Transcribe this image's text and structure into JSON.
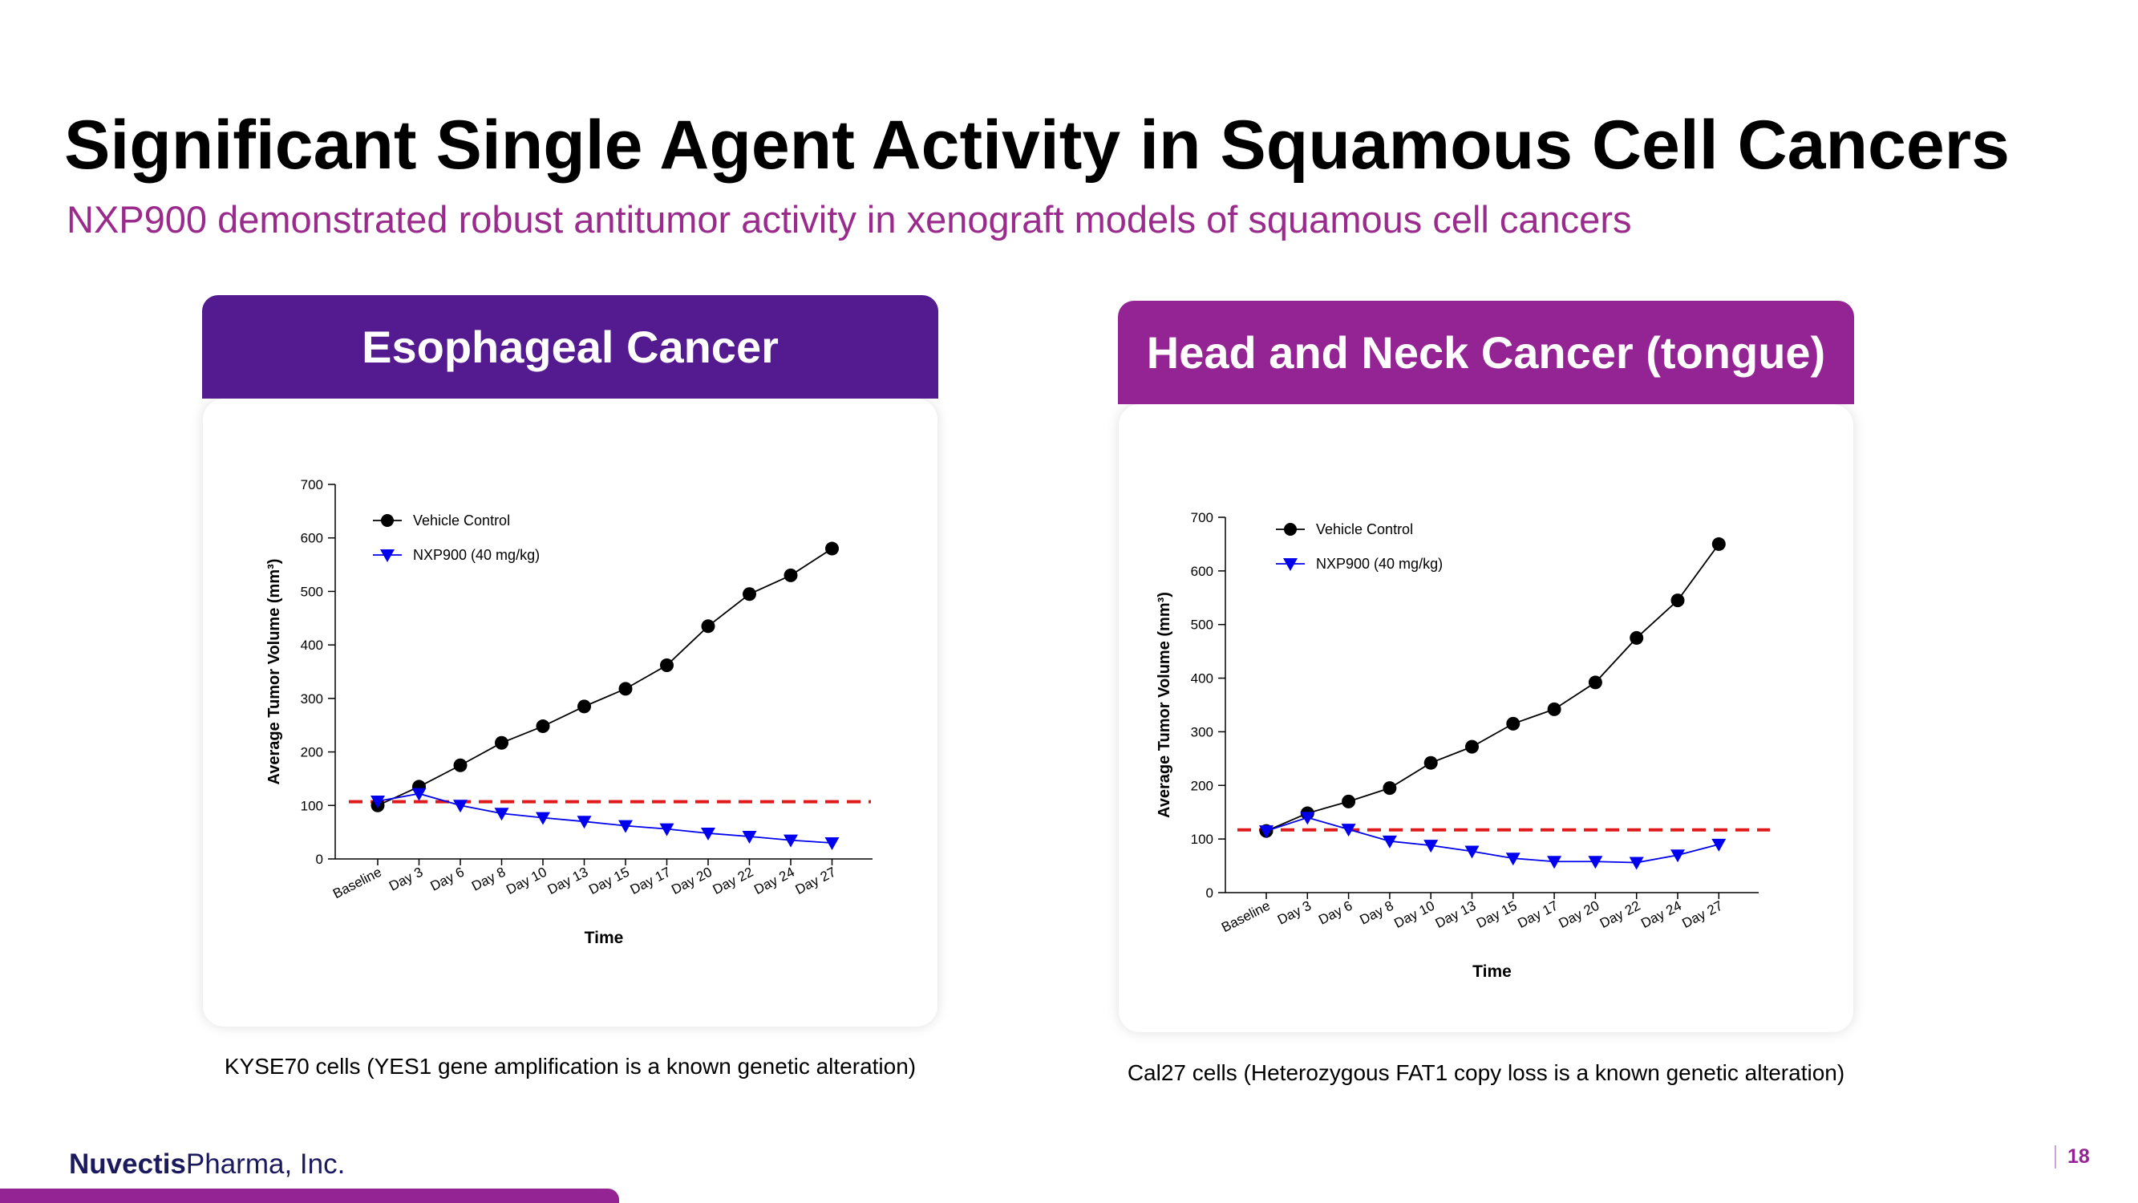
{
  "slide": {
    "title": "Significant Single Agent Activity in Squamous Cell Cancers",
    "subtitle": "NXP900 demonstrated robust antitumor activity in xenograft models of squamous cell cancers",
    "page_number": "18",
    "brand_bold": "Nuvectis",
    "brand_rest": "Pharma, Inc."
  },
  "panels": [
    {
      "header": "Esophageal Cancer",
      "header_color": "#541a8f",
      "caption": "KYSE70 cells (YES1 gene amplification is a known genetic alteration)"
    },
    {
      "header": "Head and Neck Cancer (tongue)",
      "header_color": "#942393",
      "caption": "Cal27 cells (Heterozygous FAT1 copy loss is a known genetic alteration)"
    }
  ],
  "chart_data": [
    {
      "type": "line",
      "title": "",
      "xlabel": "Time",
      "ylabel": "Average Tumor Volume (mm³)",
      "categories": [
        "Baseline",
        "Day 3",
        "Day 6",
        "Day 8",
        "Day 10",
        "Day 13",
        "Day 15",
        "Day 17",
        "Day 20",
        "Day 22",
        "Day 24",
        "Day 27"
      ],
      "ylim": [
        0,
        700
      ],
      "yticks": [
        0,
        100,
        200,
        300,
        400,
        500,
        600,
        700
      ],
      "legend_position": "top-left",
      "grid": false,
      "series": [
        {
          "name": "Vehicle Control",
          "color": "#000000",
          "marker": "circle",
          "values": [
            100,
            135,
            175,
            217,
            248,
            285,
            318,
            362,
            435,
            495,
            530,
            580
          ]
        },
        {
          "name": "NXP900 (40 mg/kg)",
          "color": "#0000ee",
          "marker": "triangle-down",
          "values": [
            108,
            122,
            100,
            85,
            77,
            70,
            62,
            56,
            48,
            42,
            35,
            30
          ]
        }
      ],
      "reference_line": {
        "value": 107,
        "color": "#e0191b"
      }
    },
    {
      "type": "line",
      "title": "",
      "xlabel": "Time",
      "ylabel": "Average Tumor Volume (mm³)",
      "categories": [
        "Baseline",
        "Day 3",
        "Day 6",
        "Day 8",
        "Day 10",
        "Day 13",
        "Day 15",
        "Day 17",
        "Day 20",
        "Day 22",
        "Day 24",
        "Day 27"
      ],
      "ylim": [
        0,
        700
      ],
      "yticks": [
        0,
        100,
        200,
        300,
        400,
        500,
        600,
        700
      ],
      "legend_position": "top-left",
      "grid": false,
      "series": [
        {
          "name": "Vehicle Control",
          "color": "#000000",
          "marker": "circle",
          "values": [
            115,
            148,
            170,
            195,
            242,
            272,
            315,
            342,
            392,
            475,
            545,
            650
          ]
        },
        {
          "name": "NXP900 (40 mg/kg)",
          "color": "#0000ee",
          "marker": "triangle-down",
          "values": [
            115,
            140,
            118,
            96,
            88,
            77,
            64,
            58,
            58,
            56,
            70,
            90
          ]
        }
      ],
      "reference_line": {
        "value": 117,
        "color": "#e0191b"
      }
    }
  ]
}
